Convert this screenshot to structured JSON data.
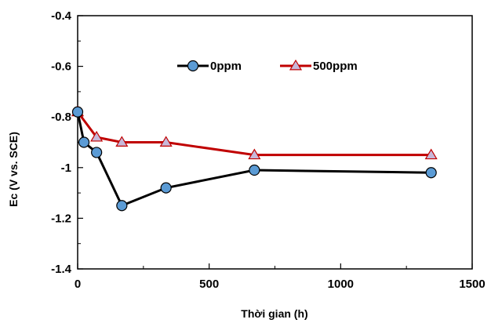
{
  "chart_data": {
    "type": "line",
    "title": "",
    "xlabel": "Thời gian (h)",
    "ylabel": "Ec (V vs. SCE)",
    "xlim": [
      0,
      1500
    ],
    "ylim": [
      -1.4,
      -0.4
    ],
    "x_ticks": [
      0,
      500,
      1000,
      1500
    ],
    "x_tick_labels": [
      "0",
      "500",
      "1000",
      "1500"
    ],
    "y_ticks": [
      -0.4,
      -0.6,
      -0.8,
      -1.0,
      -1.2,
      -1.4
    ],
    "y_tick_labels": [
      "-0.4",
      "-0.6",
      "-0.8",
      "-1",
      "-1.2",
      "-1.4"
    ],
    "grid": false,
    "legend_position": "top-center",
    "series": [
      {
        "name": "0ppm",
        "color": "#000000",
        "marker": "circle",
        "marker_fill": "#5b9bd5",
        "x": [
          0,
          24,
          72,
          168,
          336,
          672,
          1344
        ],
        "y": [
          -0.78,
          -0.9,
          -0.94,
          -1.15,
          -1.08,
          -1.01,
          -1.02
        ]
      },
      {
        "name": "500ppm",
        "color": "#c00000",
        "marker": "triangle",
        "marker_fill": "#c7b8d9",
        "x": [
          0,
          72,
          168,
          336,
          672,
          1344
        ],
        "y": [
          -0.78,
          -0.88,
          -0.9,
          -0.9,
          -0.95,
          -0.95
        ]
      }
    ]
  }
}
